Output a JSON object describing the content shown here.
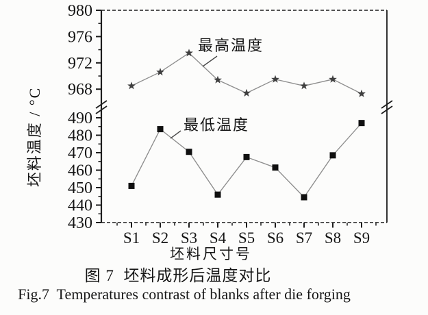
{
  "chart_data": {
    "type": "line",
    "title": "图 7  坯料成形后温度对比",
    "title_en": "Fig.7  Temperatures contrast of blanks after die forging",
    "xlabel": "坯料尺寸号",
    "ylabel": "坯料温度 / °C",
    "categories": [
      "S1",
      "S2",
      "S3",
      "S4",
      "S5",
      "S6",
      "S7",
      "S8",
      "S9"
    ],
    "series": [
      {
        "name": "最高温度",
        "marker": "star",
        "axis": "upper",
        "values": [
          968.5,
          970.6,
          973.5,
          969.4,
          967.4,
          969.5,
          968.5,
          969.5,
          967.3
        ]
      },
      {
        "name": "最低温度",
        "marker": "square",
        "axis": "lower",
        "values": [
          451,
          483.5,
          470.5,
          446,
          467.5,
          461.5,
          444.5,
          468.5,
          487
        ]
      }
    ],
    "upper_axis": {
      "range": [
        966,
        980
      ],
      "major_ticks": [
        980,
        976,
        972,
        968
      ],
      "minor_ticks": [
        978,
        974,
        970
      ]
    },
    "lower_axis": {
      "range": [
        430,
        490
      ],
      "major_ticks": [
        490,
        480,
        470,
        460,
        450,
        440,
        430
      ],
      "minor_ticks": [
        485,
        475,
        465,
        455,
        445,
        435
      ]
    },
    "axis_break": true,
    "grid": false,
    "legend_position": "inline-annotations",
    "colors": {
      "line": "#8f8f8f",
      "marker_star": "#3f3f3f",
      "marker_square": "#101010",
      "axis": "#1c1c1c",
      "text": "#151515",
      "leader": "#4a4a4a"
    }
  }
}
